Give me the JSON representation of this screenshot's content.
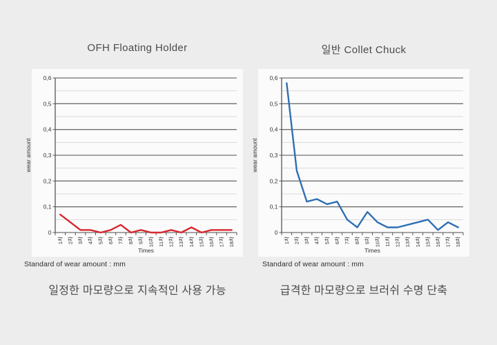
{
  "chart_data": [
    {
      "type": "line",
      "title": "OFH Floating Holder",
      "caption": "일정한 마모량으로 지속적인 사용 가능",
      "footnote": "Standard of wear amount : mm",
      "xlabel": "Times",
      "ylabel": "wear amount",
      "categories": [
        "1차",
        "2차",
        "3차",
        "4차",
        "5차",
        "6차",
        "7차",
        "8차",
        "9차",
        "10차",
        "11차",
        "12차",
        "13차",
        "14차",
        "15차",
        "16차",
        "17차",
        "18차"
      ],
      "values": [
        0.07,
        0.04,
        0.01,
        0.01,
        0,
        0.01,
        0.03,
        0,
        0.01,
        0,
        0,
        0.01,
        0,
        0.02,
        0,
        0.01,
        0.01,
        0.01
      ],
      "ylim": [
        0,
        0.6
      ],
      "ytick_labels": [
        "0",
        "0,1",
        "0,2",
        "0,3",
        "0,4",
        "0,5",
        "0,6"
      ],
      "minor_ytick_step": 0.05,
      "grid": "major-and-minor-horizontal",
      "legend": "none",
      "series_color": "#d7282e"
    },
    {
      "type": "line",
      "title": "일반 Collet Chuck",
      "caption": "급격한 마모량으로 브러쉬 수명 단축",
      "footnote": "Standard of wear amount : mm",
      "xlabel": "Times",
      "ylabel": "wear amount",
      "categories": [
        "1차",
        "2차",
        "3차",
        "4차",
        "5차",
        "6차",
        "7차",
        "8차",
        "9차",
        "10차",
        "11차",
        "12차",
        "13차",
        "14차",
        "15차",
        "16차",
        "17차",
        "18차"
      ],
      "values": [
        0.58,
        0.24,
        0.12,
        0.13,
        0.11,
        0.12,
        0.05,
        0.02,
        0.08,
        0.04,
        0.02,
        0.02,
        0.03,
        0.04,
        0.05,
        0.01,
        0.04,
        0.02
      ],
      "ylim": [
        0,
        0.6
      ],
      "ytick_labels": [
        "0",
        "0,1",
        "0,2",
        "0,3",
        "0,4",
        "0,5",
        "0,6"
      ],
      "minor_ytick_step": 0.05,
      "grid": "major-and-minor-horizontal",
      "legend": "none",
      "series_color": "#2e6fb4"
    }
  ],
  "colors": {
    "page_background": "#ededed",
    "panel_background": "#fbfbfb",
    "major_gridline": "#6f6f6f",
    "minor_gridline": "#d9d9d9",
    "tick_text": "#333333",
    "left_series": "#d7282e",
    "right_series": "#2e6fb4"
  }
}
